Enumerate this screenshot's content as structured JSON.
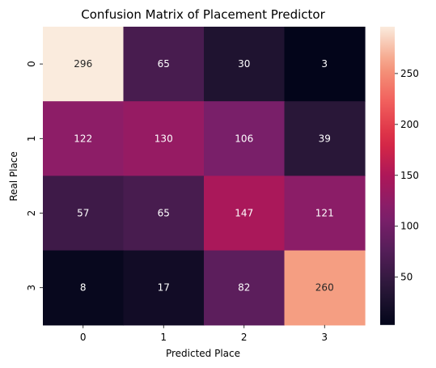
{
  "chart_data": {
    "type": "heatmap",
    "title": "Confusion Matrix of Placement Predictor",
    "xlabel": "Predicted Place",
    "ylabel": "Real Place",
    "x_categories": [
      "0",
      "1",
      "2",
      "3"
    ],
    "y_categories": [
      "0",
      "1",
      "2",
      "3"
    ],
    "values": [
      [
        296,
        65,
        30,
        3
      ],
      [
        122,
        130,
        106,
        39
      ],
      [
        57,
        65,
        147,
        121
      ],
      [
        8,
        17,
        82,
        260
      ]
    ],
    "colormap": "rocket",
    "color_range": [
      3,
      296
    ],
    "colorbar": {
      "ticks": [
        50,
        100,
        150,
        200,
        250
      ],
      "placement": "right"
    }
  }
}
